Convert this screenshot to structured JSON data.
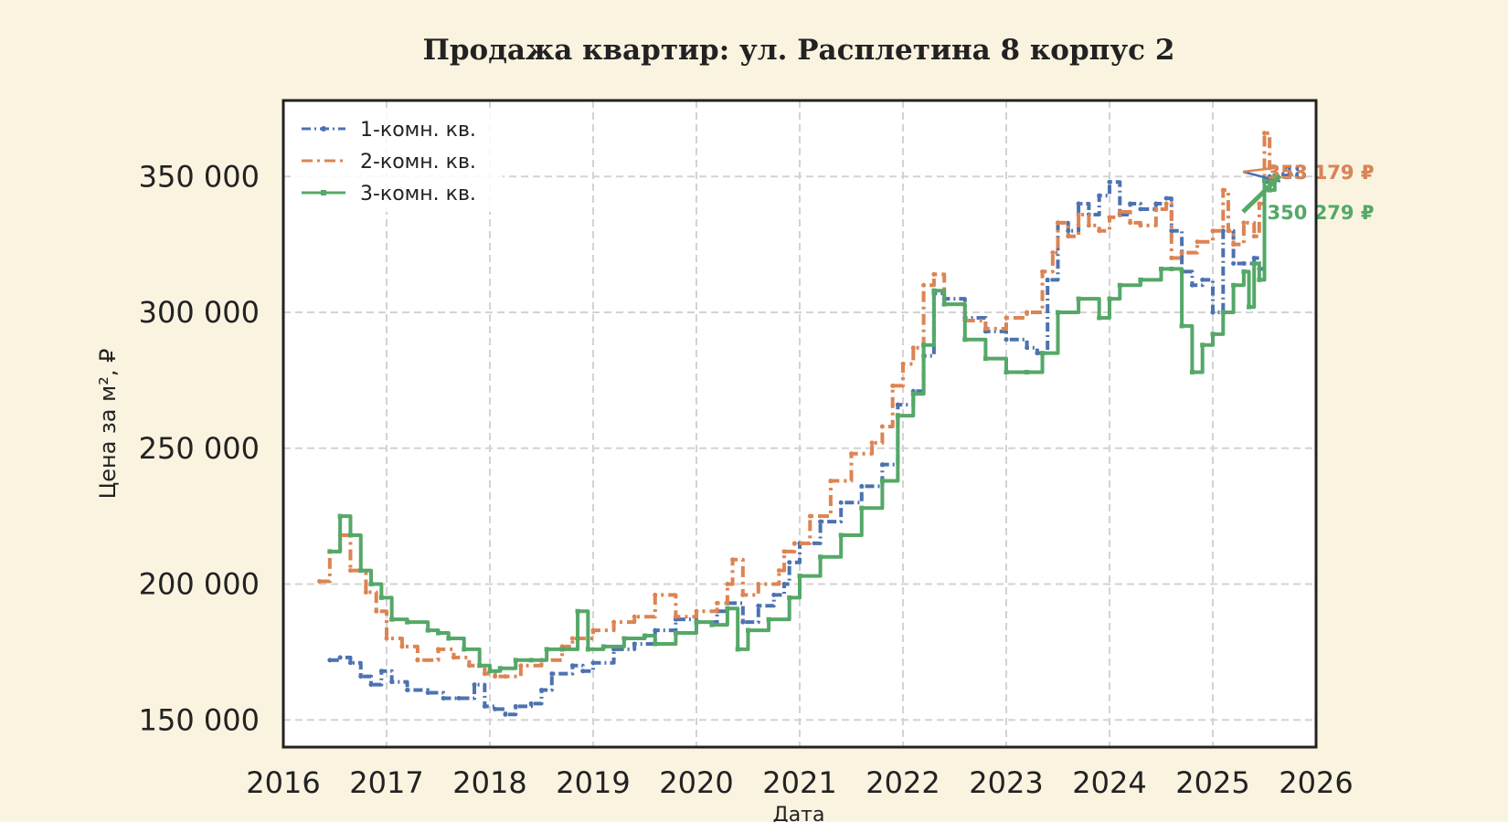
{
  "colors": {
    "background": "#faf3e0",
    "plot_background": "#ffffff",
    "axes": "#222222",
    "grid": "#d3d3d3",
    "series_1": "#4c72b0",
    "series_2": "#dd8452",
    "series_3": "#55a868"
  },
  "chart_data": {
    "type": "line",
    "title": "Продажа квартир: ул. Расплетина 8 корпус 2",
    "xlabel": "Дата",
    "ylabel": "Цена за м², ₽",
    "xlim": [
      2016.0,
      2026.0
    ],
    "ylim": [
      140000,
      378000
    ],
    "x_ticks": [
      2016,
      2017,
      2018,
      2019,
      2020,
      2021,
      2022,
      2023,
      2024,
      2025,
      2026
    ],
    "x_tick_labels": [
      "2016",
      "2017",
      "2018",
      "2019",
      "2020",
      "2021",
      "2022",
      "2023",
      "2024",
      "2025",
      "2026"
    ],
    "y_ticks": [
      150000,
      200000,
      250000,
      300000,
      350000
    ],
    "y_tick_labels": [
      "150 000",
      "200 000",
      "250 000",
      "300 000",
      "350 000"
    ],
    "grid": true,
    "legend_position": "top-left",
    "series": [
      {
        "name": "1-комн. кв.",
        "color": "#4c72b0",
        "style": "dash-dot-marker",
        "x": [
          2016.45,
          2016.55,
          2016.65,
          2016.75,
          2016.85,
          2016.95,
          2017.05,
          2017.2,
          2017.4,
          2017.55,
          2017.7,
          2017.85,
          2017.95,
          2018.05,
          2018.15,
          2018.25,
          2018.4,
          2018.5,
          2018.6,
          2018.8,
          2018.9,
          2019.0,
          2019.2,
          2019.4,
          2019.6,
          2019.8,
          2020.0,
          2020.2,
          2020.3,
          2020.45,
          2020.6,
          2020.75,
          2020.85,
          2020.9,
          2021.0,
          2021.2,
          2021.4,
          2021.6,
          2021.8,
          2021.95,
          2022.1,
          2022.2,
          2022.3,
          2022.4,
          2022.6,
          2022.8,
          2023.0,
          2023.2,
          2023.3,
          2023.4,
          2023.5,
          2023.6,
          2023.7,
          2023.8,
          2023.9,
          2024.0,
          2024.1,
          2024.2,
          2024.3,
          2024.45,
          2024.55,
          2024.6,
          2024.7,
          2024.8,
          2024.9,
          2025.0,
          2025.1,
          2025.2,
          2025.3,
          2025.4,
          2025.45,
          2025.5,
          2025.55,
          2025.6
        ],
        "values": [
          172000,
          173000,
          171000,
          166000,
          163000,
          168000,
          164000,
          161000,
          160000,
          158000,
          158000,
          163000,
          155000,
          154000,
          152000,
          155000,
          156000,
          161000,
          167000,
          170000,
          168000,
          171000,
          176000,
          178000,
          183000,
          187000,
          186000,
          190000,
          193000,
          186000,
          192000,
          196000,
          200000,
          208000,
          215000,
          223000,
          230000,
          236000,
          244000,
          266000,
          271000,
          284000,
          307000,
          305000,
          298000,
          293000,
          290000,
          287000,
          285000,
          312000,
          333000,
          330000,
          340000,
          336000,
          343000,
          348000,
          336000,
          340000,
          338000,
          340000,
          342000,
          330000,
          315000,
          310000,
          312000,
          300000,
          330000,
          318000,
          318000,
          320000,
          316000,
          348000,
          350000,
          348179
        ],
        "end_label": "348 179 ₽"
      },
      {
        "name": "2-комн. кв.",
        "color": "#dd8452",
        "style": "dash-dot",
        "x": [
          2016.35,
          2016.45,
          2016.55,
          2016.65,
          2016.8,
          2016.9,
          2017.0,
          2017.15,
          2017.3,
          2017.5,
          2017.65,
          2017.8,
          2017.95,
          2018.05,
          2018.15,
          2018.3,
          2018.5,
          2018.7,
          2018.8,
          2019.0,
          2019.2,
          2019.4,
          2019.6,
          2019.8,
          2020.0,
          2020.2,
          2020.3,
          2020.35,
          2020.45,
          2020.6,
          2020.8,
          2020.85,
          2020.95,
          2021.1,
          2021.3,
          2021.5,
          2021.7,
          2021.8,
          2021.9,
          2022.0,
          2022.1,
          2022.2,
          2022.3,
          2022.4,
          2022.6,
          2022.8,
          2023.0,
          2023.2,
          2023.35,
          2023.45,
          2023.5,
          2023.6,
          2023.7,
          2023.8,
          2023.9,
          2024.0,
          2024.1,
          2024.2,
          2024.3,
          2024.45,
          2024.55,
          2024.6,
          2024.7,
          2024.85,
          2025.0,
          2025.1,
          2025.15,
          2025.2,
          2025.3,
          2025.4,
          2025.45,
          2025.5,
          2025.55
        ],
        "values": [
          201000,
          212000,
          218000,
          205000,
          197000,
          190000,
          180000,
          177000,
          172000,
          176000,
          173000,
          170000,
          167000,
          166000,
          166000,
          170000,
          172000,
          177000,
          180000,
          183000,
          186000,
          188000,
          196000,
          188000,
          190000,
          193000,
          200000,
          209000,
          196000,
          200000,
          205000,
          212000,
          215000,
          225000,
          238000,
          248000,
          252000,
          258000,
          273000,
          281000,
          287000,
          310000,
          314000,
          303000,
          297000,
          294000,
          298000,
          300000,
          315000,
          322000,
          333000,
          328000,
          336000,
          332000,
          330000,
          335000,
          337000,
          333000,
          332000,
          338000,
          340000,
          320000,
          322000,
          326000,
          330000,
          345000,
          330000,
          325000,
          333000,
          328000,
          340000,
          366000,
          353179
        ],
        "end_label": "353 179 ₽"
      },
      {
        "name": "3-комн. кв.",
        "color": "#55a868",
        "style": "solid-marker",
        "x": [
          2016.45,
          2016.55,
          2016.65,
          2016.75,
          2016.85,
          2016.95,
          2017.05,
          2017.2,
          2017.4,
          2017.5,
          2017.6,
          2017.75,
          2017.9,
          2018.0,
          2018.1,
          2018.25,
          2018.4,
          2018.55,
          2018.7,
          2018.85,
          2018.95,
          2019.1,
          2019.3,
          2019.5,
          2019.6,
          2019.8,
          2020.0,
          2020.15,
          2020.3,
          2020.4,
          2020.5,
          2020.7,
          2020.9,
          2021.0,
          2021.2,
          2021.4,
          2021.6,
          2021.8,
          2021.95,
          2022.1,
          2022.2,
          2022.3,
          2022.4,
          2022.6,
          2022.8,
          2023.0,
          2023.2,
          2023.35,
          2023.5,
          2023.7,
          2023.9,
          2024.0,
          2024.1,
          2024.3,
          2024.5,
          2024.6,
          2024.7,
          2024.8,
          2024.9,
          2025.0,
          2025.1,
          2025.2,
          2025.3,
          2025.35,
          2025.4,
          2025.45,
          2025.5,
          2025.55,
          2025.6
        ],
        "values": [
          212000,
          225000,
          218000,
          205000,
          200000,
          195000,
          187000,
          186000,
          183000,
          182000,
          180000,
          176000,
          170000,
          168000,
          169000,
          172000,
          172000,
          176000,
          176000,
          190000,
          176000,
          177000,
          180000,
          181000,
          178000,
          182000,
          186000,
          185000,
          191000,
          176000,
          183000,
          187000,
          195000,
          203000,
          210000,
          218000,
          228000,
          238000,
          262000,
          270000,
          288000,
          308000,
          303000,
          290000,
          283000,
          278000,
          278000,
          285000,
          300000,
          305000,
          298000,
          305000,
          310000,
          312000,
          316000,
          316000,
          295000,
          278000,
          288000,
          292000,
          300000,
          310000,
          315000,
          302000,
          318000,
          312000,
          349000,
          345000,
          350279
        ],
        "end_label": "350 279 ₽"
      }
    ]
  }
}
